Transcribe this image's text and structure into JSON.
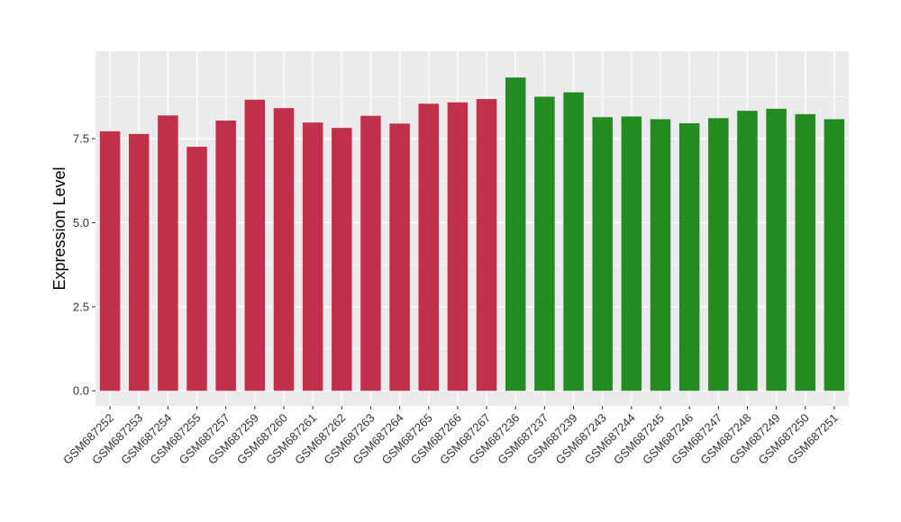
{
  "chart_data": {
    "type": "bar",
    "title": "",
    "xlabel": "",
    "ylabel": "Expression Level",
    "ylim": [
      -0.45,
      10.1
    ],
    "yticks": [
      "0.0",
      "2.5",
      "5.0",
      "7.5"
    ],
    "grid": true,
    "legend": "none",
    "colors": {
      "panel": "#EBEBEB",
      "grid": "#FFFFFF"
    },
    "categories": [
      "GSM687252",
      "GSM687253",
      "GSM687254",
      "GSM687255",
      "GSM687257",
      "GSM687259",
      "GSM687260",
      "GSM687261",
      "GSM687262",
      "GSM687263",
      "GSM687264",
      "GSM687265",
      "GSM687266",
      "GSM687267",
      "GSM687236",
      "GSM687237",
      "GSM687239",
      "GSM687243",
      "GSM687244",
      "GSM687245",
      "GSM687246",
      "GSM687247",
      "GSM687248",
      "GSM687249",
      "GSM687250",
      "GSM687251"
    ],
    "values": [
      7.72,
      7.64,
      8.19,
      7.26,
      8.04,
      8.66,
      8.41,
      7.98,
      7.82,
      8.18,
      7.95,
      8.54,
      8.58,
      8.68,
      9.32,
      8.75,
      8.88,
      8.14,
      8.16,
      8.08,
      7.96,
      8.11,
      8.33,
      8.39,
      8.23,
      8.08
    ],
    "bar_colors": [
      "#C1304B",
      "#C1304B",
      "#C1304B",
      "#C1304B",
      "#C1304B",
      "#C1304B",
      "#C1304B",
      "#C1304B",
      "#C1304B",
      "#C1304B",
      "#C1304B",
      "#C1304B",
      "#C1304B",
      "#C1304B",
      "#228B22",
      "#228B22",
      "#228B22",
      "#228B22",
      "#228B22",
      "#228B22",
      "#228B22",
      "#228B22",
      "#228B22",
      "#228B22",
      "#228B22",
      "#228B22"
    ]
  }
}
